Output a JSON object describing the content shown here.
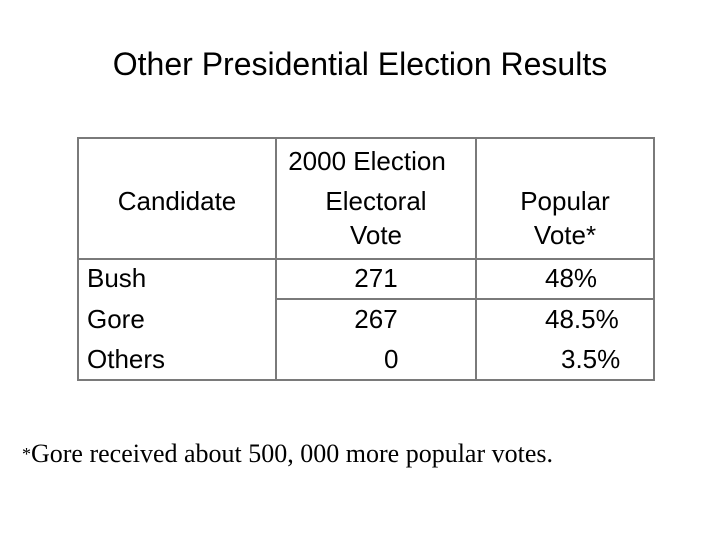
{
  "title": "Other Presidential Election Results",
  "table": {
    "headers": {
      "candidate": "Candidate",
      "group": "2000 Election",
      "electoral_line1": "Electoral",
      "electoral_line2": "Vote",
      "popular_line1": "Popular",
      "popular_line2": "Vote*"
    },
    "rows": [
      {
        "candidate": "Bush",
        "electoral": "271",
        "popular": "48%"
      },
      {
        "candidate": "Gore",
        "electoral": "267",
        "popular": "48.5%"
      },
      {
        "candidate": "Others",
        "electoral": "0",
        "popular": "3.5%"
      }
    ]
  },
  "footnote": {
    "marker": "*",
    "text": "Gore received about 500, 000 more popular votes."
  }
}
